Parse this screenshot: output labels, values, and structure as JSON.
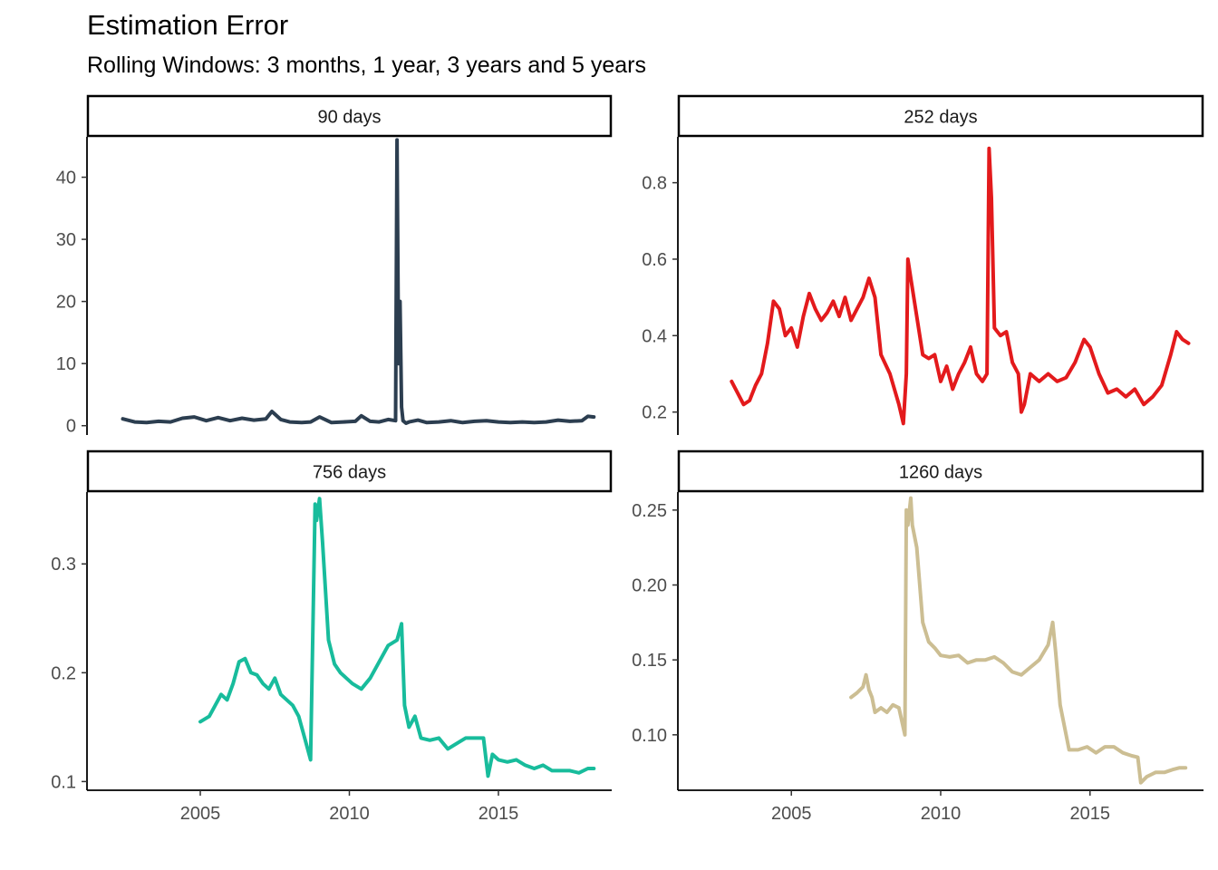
{
  "title": "Estimation Error",
  "subtitle": "Rolling Windows: 3 months, 1 year, 3 years and 5 years",
  "chart_data": [
    {
      "type": "line",
      "panel": "90 days",
      "color": "#2C3E50",
      "ylim": [
        -1.5,
        46.5
      ],
      "yticks": [
        0,
        10,
        20,
        30,
        40
      ],
      "xlim": [
        2001.2,
        2018.8
      ],
      "xticks": [
        2005,
        2010,
        2015
      ],
      "x": [
        2002.4,
        2002.8,
        2003.2,
        2003.6,
        2004.0,
        2004.4,
        2004.8,
        2005.2,
        2005.6,
        2006.0,
        2006.4,
        2006.8,
        2007.2,
        2007.4,
        2007.7,
        2008.0,
        2008.4,
        2008.7,
        2009.0,
        2009.4,
        2009.8,
        2010.2,
        2010.4,
        2010.7,
        2011.0,
        2011.3,
        2011.55,
        2011.6,
        2011.65,
        2011.7,
        2011.75,
        2011.8,
        2011.9,
        2012.0,
        2012.3,
        2012.6,
        2013.0,
        2013.4,
        2013.8,
        2014.2,
        2014.6,
        2015.0,
        2015.4,
        2015.8,
        2016.2,
        2016.6,
        2017.0,
        2017.4,
        2017.8,
        2018.0,
        2018.2
      ],
      "y": [
        1.1,
        0.6,
        0.5,
        0.7,
        0.6,
        1.2,
        1.4,
        0.8,
        1.3,
        0.8,
        1.2,
        0.9,
        1.1,
        2.3,
        1.0,
        0.6,
        0.5,
        0.6,
        1.4,
        0.5,
        0.6,
        0.7,
        1.6,
        0.7,
        0.6,
        1.0,
        0.8,
        46.0,
        10.0,
        20.0,
        3.0,
        0.8,
        0.4,
        0.6,
        0.9,
        0.5,
        0.6,
        0.8,
        0.5,
        0.7,
        0.8,
        0.6,
        0.5,
        0.6,
        0.5,
        0.6,
        0.9,
        0.7,
        0.8,
        1.5,
        1.4
      ]
    },
    {
      "type": "line",
      "panel": "252 days",
      "color": "#E31A1C",
      "ylim": [
        0.14,
        0.92
      ],
      "yticks": [
        0.2,
        0.4,
        0.6,
        0.8
      ],
      "xlim": [
        2001.2,
        2018.8
      ],
      "xticks": [
        2005,
        2010,
        2015
      ],
      "x": [
        2003.0,
        2003.2,
        2003.4,
        2003.6,
        2003.8,
        2004.0,
        2004.2,
        2004.4,
        2004.6,
        2004.8,
        2005.0,
        2005.2,
        2005.4,
        2005.6,
        2005.8,
        2006.0,
        2006.2,
        2006.4,
        2006.6,
        2006.8,
        2007.0,
        2007.2,
        2007.4,
        2007.6,
        2007.8,
        2008.0,
        2008.3,
        2008.6,
        2008.75,
        2008.85,
        2008.9,
        2009.0,
        2009.2,
        2009.4,
        2009.6,
        2009.8,
        2010.0,
        2010.2,
        2010.4,
        2010.6,
        2010.8,
        2011.0,
        2011.2,
        2011.4,
        2011.55,
        2011.62,
        2011.7,
        2011.8,
        2012.0,
        2012.2,
        2012.4,
        2012.6,
        2012.7,
        2012.8,
        2013.0,
        2013.3,
        2013.6,
        2013.9,
        2014.2,
        2014.5,
        2014.8,
        2015.0,
        2015.3,
        2015.6,
        2015.9,
        2016.2,
        2016.5,
        2016.8,
        2017.1,
        2017.4,
        2017.7,
        2017.9,
        2018.1,
        2018.3
      ],
      "y": [
        0.28,
        0.25,
        0.22,
        0.23,
        0.27,
        0.3,
        0.38,
        0.49,
        0.47,
        0.4,
        0.42,
        0.37,
        0.45,
        0.51,
        0.47,
        0.44,
        0.46,
        0.49,
        0.45,
        0.5,
        0.44,
        0.47,
        0.5,
        0.55,
        0.5,
        0.35,
        0.3,
        0.22,
        0.17,
        0.3,
        0.6,
        0.55,
        0.45,
        0.35,
        0.34,
        0.35,
        0.28,
        0.32,
        0.26,
        0.3,
        0.33,
        0.37,
        0.3,
        0.28,
        0.3,
        0.89,
        0.76,
        0.42,
        0.4,
        0.41,
        0.33,
        0.3,
        0.2,
        0.22,
        0.3,
        0.28,
        0.3,
        0.28,
        0.29,
        0.33,
        0.39,
        0.37,
        0.3,
        0.25,
        0.26,
        0.24,
        0.26,
        0.22,
        0.24,
        0.27,
        0.35,
        0.41,
        0.39,
        0.38
      ]
    },
    {
      "type": "line",
      "panel": "756 days",
      "color": "#18BC9C",
      "ylim": [
        0.092,
        0.366
      ],
      "yticks": [
        0.1,
        0.2,
        0.3
      ],
      "yticklabels": [
        "0.1",
        "0.2",
        "0.3"
      ],
      "xlim": [
        2001.2,
        2018.8
      ],
      "xticks": [
        2005,
        2010,
        2015
      ],
      "x": [
        2005.0,
        2005.3,
        2005.5,
        2005.7,
        2005.9,
        2006.1,
        2006.3,
        2006.5,
        2006.7,
        2006.9,
        2007.1,
        2007.3,
        2007.5,
        2007.7,
        2007.9,
        2008.1,
        2008.3,
        2008.5,
        2008.7,
        2008.85,
        2008.9,
        2009.0,
        2009.1,
        2009.3,
        2009.5,
        2009.7,
        2009.9,
        2010.1,
        2010.4,
        2010.7,
        2011.0,
        2011.3,
        2011.6,
        2011.75,
        2011.85,
        2012.0,
        2012.2,
        2012.4,
        2012.7,
        2013.0,
        2013.3,
        2013.6,
        2013.9,
        2014.2,
        2014.5,
        2014.65,
        2014.8,
        2015.0,
        2015.3,
        2015.6,
        2015.9,
        2016.2,
        2016.5,
        2016.8,
        2017.1,
        2017.4,
        2017.7,
        2018.0,
        2018.2
      ],
      "y": [
        0.155,
        0.16,
        0.17,
        0.18,
        0.175,
        0.19,
        0.21,
        0.213,
        0.2,
        0.198,
        0.19,
        0.185,
        0.195,
        0.18,
        0.175,
        0.17,
        0.16,
        0.14,
        0.12,
        0.355,
        0.34,
        0.36,
        0.32,
        0.23,
        0.208,
        0.2,
        0.195,
        0.19,
        0.185,
        0.195,
        0.21,
        0.225,
        0.23,
        0.245,
        0.17,
        0.15,
        0.16,
        0.14,
        0.138,
        0.14,
        0.13,
        0.135,
        0.14,
        0.14,
        0.14,
        0.105,
        0.125,
        0.12,
        0.118,
        0.12,
        0.115,
        0.112,
        0.115,
        0.11,
        0.11,
        0.11,
        0.108,
        0.112,
        0.112
      ]
    },
    {
      "type": "line",
      "panel": "1260 days",
      "color": "#CCBE93",
      "ylim": [
        0.063,
        0.262
      ],
      "yticks": [
        0.1,
        0.15,
        0.2,
        0.25
      ],
      "yticklabels": [
        "0.10",
        "0.15",
        "0.20",
        "0.25"
      ],
      "xlim": [
        2001.2,
        2018.8
      ],
      "xticks": [
        2005,
        2010,
        2015
      ],
      "x": [
        2007.0,
        2007.2,
        2007.4,
        2007.5,
        2007.6,
        2007.7,
        2007.8,
        2008.0,
        2008.2,
        2008.4,
        2008.6,
        2008.8,
        2008.85,
        2008.9,
        2009.0,
        2009.05,
        2009.2,
        2009.4,
        2009.6,
        2009.8,
        2010.0,
        2010.3,
        2010.6,
        2010.9,
        2011.2,
        2011.5,
        2011.8,
        2012.1,
        2012.4,
        2012.7,
        2013.0,
        2013.3,
        2013.6,
        2013.75,
        2013.85,
        2014.0,
        2014.1,
        2014.3,
        2014.6,
        2014.9,
        2015.2,
        2015.5,
        2015.8,
        2016.1,
        2016.4,
        2016.6,
        2016.7,
        2016.9,
        2017.2,
        2017.5,
        2017.8,
        2018.0,
        2018.2
      ],
      "y": [
        0.125,
        0.128,
        0.132,
        0.14,
        0.13,
        0.125,
        0.115,
        0.118,
        0.115,
        0.12,
        0.118,
        0.1,
        0.25,
        0.24,
        0.258,
        0.24,
        0.225,
        0.175,
        0.162,
        0.158,
        0.153,
        0.152,
        0.153,
        0.148,
        0.15,
        0.15,
        0.152,
        0.148,
        0.142,
        0.14,
        0.145,
        0.15,
        0.16,
        0.175,
        0.155,
        0.12,
        0.11,
        0.09,
        0.09,
        0.092,
        0.088,
        0.092,
        0.092,
        0.088,
        0.086,
        0.085,
        0.068,
        0.072,
        0.075,
        0.075,
        0.077,
        0.078,
        0.078
      ]
    }
  ]
}
